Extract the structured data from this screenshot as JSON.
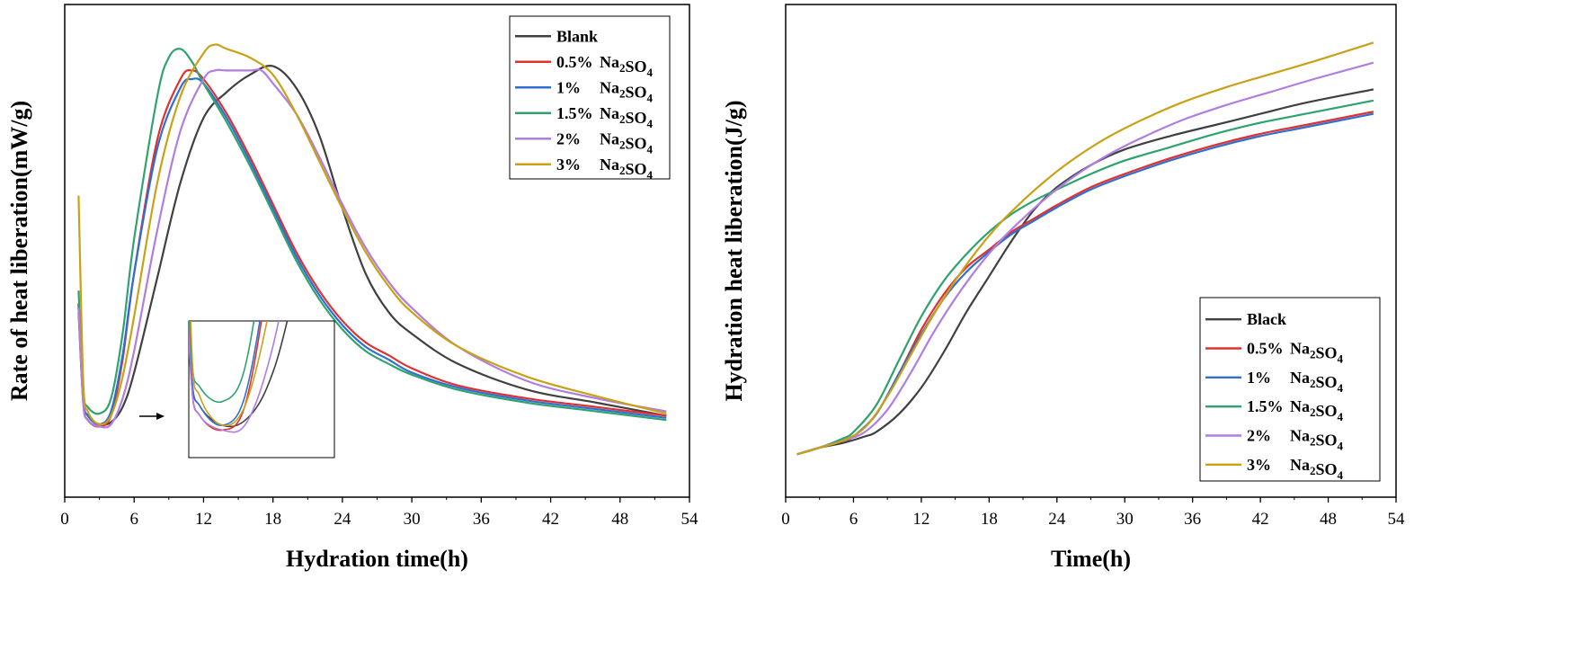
{
  "chart_data": [
    {
      "type": "line",
      "xlabel": "Hydration time(h)",
      "ylabel": "Rate of heat liberation(mW/g)",
      "xlim": [
        0,
        54
      ],
      "xticks": [
        0,
        6,
        12,
        18,
        24,
        30,
        36,
        42,
        48,
        54
      ],
      "xtick_labels": [
        "0",
        "6",
        "12",
        "18",
        "24",
        "30",
        "36",
        "42",
        "48",
        "54"
      ],
      "y_ticks_shown": false,
      "ylim": [
        0,
        1.0
      ],
      "legend_position": "top-right",
      "inset": {
        "position": "lower-left",
        "xrange": [
          1.5,
          8
        ],
        "arrow": true
      },
      "series": [
        {
          "name": "Blank",
          "formula": "",
          "color": "#404040",
          "x": [
            1.2,
            1.6,
            2,
            3,
            4,
            5,
            6,
            8,
            10,
            12,
            14,
            16,
            18,
            20,
            22,
            24,
            26,
            28,
            30,
            34,
            40,
            46,
            52
          ],
          "y": [
            0.38,
            0.16,
            0.12,
            0.1,
            0.105,
            0.14,
            0.22,
            0.44,
            0.66,
            0.81,
            0.87,
            0.91,
            0.93,
            0.88,
            0.77,
            0.6,
            0.45,
            0.36,
            0.31,
            0.24,
            0.18,
            0.15,
            0.12
          ]
        },
        {
          "name": "0.5%",
          "formula": "Na2SO4",
          "color": "#e03030",
          "x": [
            1.2,
            1.6,
            2,
            3,
            4,
            5,
            6,
            8,
            10,
            11,
            12,
            14,
            16,
            18,
            20,
            22,
            24,
            26,
            28,
            30,
            34,
            40,
            46,
            52
          ],
          "y": [
            0.36,
            0.15,
            0.11,
            0.095,
            0.12,
            0.25,
            0.45,
            0.76,
            0.9,
            0.92,
            0.9,
            0.82,
            0.72,
            0.61,
            0.5,
            0.41,
            0.34,
            0.29,
            0.26,
            0.23,
            0.19,
            0.16,
            0.14,
            0.12
          ]
        },
        {
          "name": "1%",
          "formula": "Na2SO4",
          "color": "#2f6fd0",
          "x": [
            1.2,
            1.6,
            2,
            3,
            4,
            5,
            6,
            8,
            10,
            11,
            12,
            14,
            16,
            18,
            20,
            22,
            24,
            26,
            28,
            30,
            34,
            40,
            46,
            52
          ],
          "y": [
            0.37,
            0.16,
            0.12,
            0.1,
            0.13,
            0.26,
            0.45,
            0.74,
            0.88,
            0.9,
            0.89,
            0.81,
            0.71,
            0.6,
            0.49,
            0.4,
            0.33,
            0.28,
            0.25,
            0.22,
            0.185,
            0.155,
            0.135,
            0.115
          ]
        },
        {
          "name": "1.5%",
          "formula": "Na2SO4",
          "color": "#2fa36f",
          "x": [
            1.2,
            1.6,
            2,
            3,
            4,
            5,
            6,
            8,
            9,
            10,
            11,
            12,
            14,
            16,
            18,
            20,
            22,
            24,
            26,
            28,
            30,
            34,
            40,
            46,
            52
          ],
          "y": [
            0.41,
            0.18,
            0.14,
            0.125,
            0.16,
            0.31,
            0.53,
            0.86,
            0.95,
            0.97,
            0.94,
            0.89,
            0.8,
            0.7,
            0.59,
            0.48,
            0.39,
            0.32,
            0.27,
            0.24,
            0.215,
            0.18,
            0.15,
            0.13,
            0.11
          ]
        },
        {
          "name": "2%",
          "formula": "Na2SO4",
          "color": "#b07de0",
          "x": [
            1.2,
            1.6,
            2,
            3,
            4,
            5,
            6,
            8,
            10,
            12,
            13,
            14,
            16,
            17,
            18,
            20,
            22,
            24,
            26,
            28,
            30,
            34,
            40,
            46,
            52
          ],
          "y": [
            0.37,
            0.15,
            0.11,
            0.095,
            0.1,
            0.16,
            0.27,
            0.55,
            0.78,
            0.9,
            0.92,
            0.92,
            0.92,
            0.92,
            0.89,
            0.82,
            0.72,
            0.61,
            0.51,
            0.43,
            0.37,
            0.28,
            0.2,
            0.16,
            0.13
          ]
        },
        {
          "name": "3%",
          "formula": "Na2SO4",
          "color": "#c9a116",
          "x": [
            1.2,
            1.6,
            2,
            3,
            4,
            5,
            6,
            8,
            10,
            12,
            13,
            14,
            16,
            18,
            20,
            22,
            24,
            26,
            28,
            30,
            34,
            40,
            46,
            52
          ],
          "y": [
            0.63,
            0.2,
            0.13,
            0.1,
            0.12,
            0.21,
            0.35,
            0.66,
            0.86,
            0.96,
            0.98,
            0.97,
            0.95,
            0.91,
            0.82,
            0.71,
            0.6,
            0.5,
            0.42,
            0.36,
            0.28,
            0.21,
            0.165,
            0.125
          ]
        }
      ]
    },
    {
      "type": "line",
      "xlabel": "Time(h)",
      "ylabel": "Hydration heat liberation(J/g)",
      "xlim": [
        0,
        54
      ],
      "xticks": [
        0,
        6,
        12,
        18,
        24,
        30,
        36,
        42,
        48,
        54
      ],
      "xtick_labels": [
        "0",
        "6",
        "12",
        "18",
        "24",
        "30",
        "36",
        "42",
        "48",
        "54"
      ],
      "y_ticks_shown": false,
      "ylim": [
        0,
        1.0
      ],
      "legend_position": "bottom-right",
      "series": [
        {
          "name": "Black",
          "formula": "",
          "color": "#404040",
          "x": [
            1,
            3,
            5,
            7,
            8,
            10,
            12,
            14,
            16,
            18,
            20,
            22,
            24,
            27,
            30,
            34,
            38,
            42,
            46,
            52
          ],
          "y": [
            0.06,
            0.075,
            0.085,
            0.1,
            0.11,
            0.15,
            0.21,
            0.29,
            0.38,
            0.46,
            0.54,
            0.61,
            0.66,
            0.71,
            0.745,
            0.775,
            0.8,
            0.825,
            0.85,
            0.88
          ]
        },
        {
          "name": "0.5%",
          "formula": "Na2SO4",
          "color": "#e03030",
          "x": [
            1,
            3,
            5,
            6,
            8,
            10,
            12,
            14,
            16,
            18,
            20,
            22,
            24,
            27,
            30,
            34,
            38,
            42,
            46,
            52
          ],
          "y": [
            0.06,
            0.075,
            0.09,
            0.1,
            0.15,
            0.24,
            0.34,
            0.42,
            0.48,
            0.52,
            0.56,
            0.59,
            0.62,
            0.66,
            0.69,
            0.725,
            0.755,
            0.78,
            0.8,
            0.83
          ]
        },
        {
          "name": "1%",
          "formula": "Na2SO4",
          "color": "#2f6fd0",
          "x": [
            1,
            3,
            5,
            6,
            8,
            10,
            12,
            14,
            16,
            18,
            20,
            22,
            24,
            27,
            30,
            34,
            38,
            42,
            46,
            52
          ],
          "y": [
            0.06,
            0.075,
            0.09,
            0.1,
            0.15,
            0.24,
            0.33,
            0.41,
            0.47,
            0.515,
            0.555,
            0.585,
            0.615,
            0.655,
            0.685,
            0.72,
            0.75,
            0.775,
            0.795,
            0.825
          ]
        },
        {
          "name": "1.5%",
          "formula": "Na2SO4",
          "color": "#2fa36f",
          "x": [
            1,
            3,
            5,
            6,
            8,
            10,
            12,
            14,
            16,
            18,
            20,
            22,
            24,
            27,
            30,
            34,
            38,
            42,
            46,
            52
          ],
          "y": [
            0.06,
            0.075,
            0.095,
            0.11,
            0.17,
            0.27,
            0.37,
            0.45,
            0.51,
            0.56,
            0.6,
            0.63,
            0.655,
            0.69,
            0.72,
            0.75,
            0.78,
            0.805,
            0.825,
            0.855
          ]
        },
        {
          "name": "2%",
          "formula": "Na2SO4",
          "color": "#b07de0",
          "x": [
            1,
            3,
            5,
            7,
            9,
            11,
            13,
            15,
            17,
            19,
            21,
            23,
            25,
            28,
            31,
            35,
            39,
            43,
            47,
            52
          ],
          "y": [
            0.06,
            0.075,
            0.09,
            0.11,
            0.16,
            0.24,
            0.33,
            0.41,
            0.48,
            0.54,
            0.59,
            0.635,
            0.675,
            0.725,
            0.765,
            0.81,
            0.845,
            0.875,
            0.905,
            0.94
          ]
        },
        {
          "name": "3%",
          "formula": "Na2SO4",
          "color": "#c9a116",
          "x": [
            1,
            3,
            5,
            7,
            9,
            11,
            13,
            15,
            17,
            19,
            21,
            23,
            25,
            28,
            31,
            35,
            39,
            43,
            47,
            52
          ],
          "y": [
            0.06,
            0.075,
            0.09,
            0.12,
            0.19,
            0.28,
            0.37,
            0.45,
            0.52,
            0.58,
            0.63,
            0.675,
            0.715,
            0.765,
            0.805,
            0.85,
            0.885,
            0.915,
            0.945,
            0.985
          ]
        }
      ]
    }
  ]
}
